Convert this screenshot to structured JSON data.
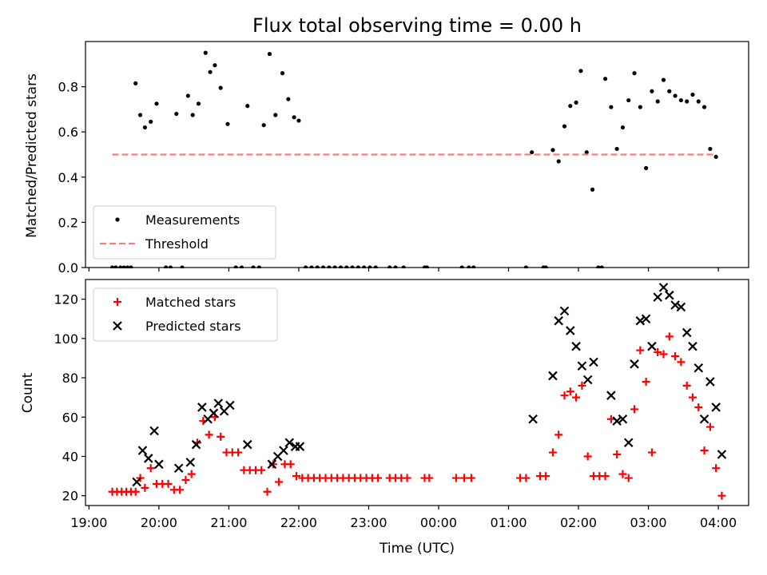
{
  "chart_data": [
    {
      "type": "scatter",
      "title": "Flux total observing time = 0.00 h",
      "xlabel": "",
      "ylabel": "Matched/Predicted stars",
      "ylim": [
        0,
        1.0
      ],
      "xlim": [
        "2023-01-01T18:57",
        "2023-01-02T04:26"
      ],
      "yticks": [
        "0.0",
        "0.2",
        "0.4",
        "0.6",
        "0.8"
      ],
      "yticks_values": [
        0,
        0.2,
        0.4,
        0.6,
        0.8
      ],
      "xtick_labels": [],
      "legend": {
        "placement": "lower-left"
      },
      "series": [
        {
          "name": "Measurements",
          "marker": "dot",
          "color": "#000000",
          "points": [
            [
              "19:20",
              0
            ],
            [
              "19:23",
              0
            ],
            [
              "19:27",
              0
            ],
            [
              "19:30",
              0
            ],
            [
              "19:33",
              0
            ],
            [
              "19:36",
              0
            ],
            [
              "19:40",
              0.815
            ],
            [
              "19:44",
              0.675
            ],
            [
              "19:48",
              0.62
            ],
            [
              "19:53",
              0.645
            ],
            [
              "19:58",
              0.725
            ],
            [
              "20:06",
              0
            ],
            [
              "20:10",
              0
            ],
            [
              "20:15",
              0.68
            ],
            [
              "20:20",
              0
            ],
            [
              "20:25",
              0.76
            ],
            [
              "20:29",
              0.675
            ],
            [
              "20:34",
              0.725
            ],
            [
              "20:40",
              0.95
            ],
            [
              "20:44",
              0.865
            ],
            [
              "20:48",
              0.895
            ],
            [
              "20:53",
              0.795
            ],
            [
              "20:59",
              0.635
            ],
            [
              "21:06",
              0
            ],
            [
              "21:11",
              0
            ],
            [
              "21:16",
              0.715
            ],
            [
              "21:21",
              0
            ],
            [
              "21:26",
              0
            ],
            [
              "21:30",
              0.63
            ],
            [
              "21:35",
              0.945
            ],
            [
              "21:40",
              0.675
            ],
            [
              "21:46",
              0.86
            ],
            [
              "21:51",
              0.745
            ],
            [
              "21:56",
              0.665
            ],
            [
              "22:00",
              0.65
            ],
            [
              "22:06",
              0
            ],
            [
              "22:11",
              0
            ],
            [
              "22:16",
              0
            ],
            [
              "22:21",
              0
            ],
            [
              "22:26",
              0
            ],
            [
              "22:31",
              0
            ],
            [
              "22:36",
              0
            ],
            [
              "22:41",
              0
            ],
            [
              "22:46",
              0
            ],
            [
              "22:51",
              0
            ],
            [
              "22:56",
              0
            ],
            [
              "23:01",
              0
            ],
            [
              "23:06",
              0
            ],
            [
              "23:18",
              0
            ],
            [
              "23:23",
              0
            ],
            [
              "23:30",
              0
            ],
            [
              "23:48",
              0
            ],
            [
              "23:50",
              0
            ],
            [
              "00:20",
              0
            ],
            [
              "00:26",
              0
            ],
            [
              "00:30",
              0
            ],
            [
              "01:15",
              0
            ],
            [
              "01:20",
              0.51
            ],
            [
              "01:30",
              0
            ],
            [
              "01:32",
              0
            ],
            [
              "01:38",
              0.52
            ],
            [
              "01:43",
              0.47
            ],
            [
              "01:48",
              0.625
            ],
            [
              "01:53",
              0.715
            ],
            [
              "01:58",
              0.73
            ],
            [
              "02:02",
              0.87
            ],
            [
              "02:07",
              0.51
            ],
            [
              "02:12",
              0.345
            ],
            [
              "02:17",
              0
            ],
            [
              "02:20",
              0
            ],
            [
              "02:23",
              0.835
            ],
            [
              "02:28",
              0.71
            ],
            [
              "02:33",
              0.525
            ],
            [
              "02:38",
              0.62
            ],
            [
              "02:43",
              0.74
            ],
            [
              "02:48",
              0.86
            ],
            [
              "02:53",
              0.71
            ],
            [
              "02:58",
              0.44
            ],
            [
              "03:03",
              0.78
            ],
            [
              "03:08",
              0.735
            ],
            [
              "03:13",
              0.83
            ],
            [
              "03:18",
              0.78
            ],
            [
              "03:23",
              0.76
            ],
            [
              "03:28",
              0.74
            ],
            [
              "03:33",
              0.735
            ],
            [
              "03:38",
              0.765
            ],
            [
              "03:43",
              0.735
            ],
            [
              "03:48",
              0.71
            ],
            [
              "03:53",
              0.525
            ],
            [
              "03:58",
              0.49
            ]
          ]
        },
        {
          "name": "Threshold",
          "marker": "dashed-line",
          "color": "#f08080",
          "points": [
            [
              "19:20",
              0.5
            ],
            [
              "03:58",
              0.5
            ]
          ]
        }
      ]
    },
    {
      "type": "scatter",
      "title": "",
      "xlabel": "Time (UTC)",
      "ylabel": "Count",
      "ylim": [
        15,
        130
      ],
      "xlim": [
        "2023-01-01T18:57",
        "2023-01-02T04:26"
      ],
      "yticks": [
        "20",
        "40",
        "60",
        "80",
        "100",
        "120"
      ],
      "yticks_values": [
        20,
        40,
        60,
        80,
        100,
        120
      ],
      "xtick_labels": [
        "19:00",
        "20:00",
        "21:00",
        "22:00",
        "23:00",
        "00:00",
        "01:00",
        "02:00",
        "03:00",
        "04:00"
      ],
      "legend": {
        "placement": "upper-left"
      },
      "series": [
        {
          "name": "Matched stars",
          "marker": "plus",
          "color": "#ff0000",
          "points": [
            [
              "19:20",
              22
            ],
            [
              "19:24",
              22
            ],
            [
              "19:28",
              22
            ],
            [
              "19:32",
              22
            ],
            [
              "19:36",
              22
            ],
            [
              "19:40",
              22
            ],
            [
              "19:44",
              29
            ],
            [
              "19:48",
              24
            ],
            [
              "19:53",
              34
            ],
            [
              "19:58",
              26
            ],
            [
              "20:03",
              26
            ],
            [
              "20:08",
              26
            ],
            [
              "20:13",
              23
            ],
            [
              "20:18",
              23
            ],
            [
              "20:23",
              28
            ],
            [
              "20:28",
              31
            ],
            [
              "20:33",
              47
            ],
            [
              "20:38",
              58
            ],
            [
              "20:43",
              51
            ],
            [
              "20:48",
              60
            ],
            [
              "20:53",
              50
            ],
            [
              "20:58",
              42
            ],
            [
              "21:03",
              42
            ],
            [
              "21:08",
              42
            ],
            [
              "21:13",
              33
            ],
            [
              "21:18",
              33
            ],
            [
              "21:23",
              33
            ],
            [
              "21:28",
              33
            ],
            [
              "21:33",
              22
            ],
            [
              "21:38",
              36
            ],
            [
              "21:43",
              27
            ],
            [
              "21:48",
              36
            ],
            [
              "21:53",
              36
            ],
            [
              "21:58",
              30
            ],
            [
              "22:03",
              29
            ],
            [
              "22:08",
              29
            ],
            [
              "22:13",
              29
            ],
            [
              "22:18",
              29
            ],
            [
              "22:23",
              29
            ],
            [
              "22:28",
              29
            ],
            [
              "22:33",
              29
            ],
            [
              "22:38",
              29
            ],
            [
              "22:43",
              29
            ],
            [
              "22:48",
              29
            ],
            [
              "22:53",
              29
            ],
            [
              "22:58",
              29
            ],
            [
              "23:03",
              29
            ],
            [
              "23:08",
              29
            ],
            [
              "23:18",
              29
            ],
            [
              "23:23",
              29
            ],
            [
              "23:28",
              29
            ],
            [
              "23:33",
              29
            ],
            [
              "23:48",
              29
            ],
            [
              "23:52",
              29
            ],
            [
              "00:15",
              29
            ],
            [
              "00:22",
              29
            ],
            [
              "00:28",
              29
            ],
            [
              "01:10",
              29
            ],
            [
              "01:15",
              29
            ],
            [
              "01:27",
              30
            ],
            [
              "01:32",
              30
            ],
            [
              "01:38",
              42
            ],
            [
              "01:43",
              51
            ],
            [
              "01:48",
              71
            ],
            [
              "01:53",
              73
            ],
            [
              "01:58",
              70
            ],
            [
              "02:03",
              76
            ],
            [
              "02:08",
              40
            ],
            [
              "02:13",
              30
            ],
            [
              "02:18",
              30
            ],
            [
              "02:23",
              30
            ],
            [
              "02:28",
              59
            ],
            [
              "02:33",
              41
            ],
            [
              "02:38",
              31
            ],
            [
              "02:43",
              29
            ],
            [
              "02:48",
              64
            ],
            [
              "02:53",
              94
            ],
            [
              "02:58",
              78
            ],
            [
              "03:03",
              42
            ],
            [
              "03:08",
              93
            ],
            [
              "03:13",
              92
            ],
            [
              "03:18",
              101
            ],
            [
              "03:23",
              91
            ],
            [
              "03:28",
              88
            ],
            [
              "03:33",
              76
            ],
            [
              "03:38",
              70
            ],
            [
              "03:43",
              65
            ],
            [
              "03:48",
              43
            ],
            [
              "03:53",
              55
            ],
            [
              "03:58",
              34
            ],
            [
              "04:03",
              20
            ]
          ]
        },
        {
          "name": "Predicted stars",
          "marker": "x",
          "color": "#000000",
          "points": [
            [
              "19:41",
              27
            ],
            [
              "19:46",
              43
            ],
            [
              "19:51",
              39
            ],
            [
              "19:56",
              53
            ],
            [
              "20:00",
              36
            ],
            [
              "20:17",
              34
            ],
            [
              "20:27",
              37
            ],
            [
              "20:32",
              46
            ],
            [
              "20:37",
              65
            ],
            [
              "20:42",
              59
            ],
            [
              "20:47",
              62
            ],
            [
              "20:51",
              67
            ],
            [
              "20:56",
              63
            ],
            [
              "21:01",
              66
            ],
            [
              "21:16",
              46
            ],
            [
              "21:37",
              36
            ],
            [
              "21:42",
              40
            ],
            [
              "21:47",
              43
            ],
            [
              "21:52",
              47
            ],
            [
              "21:57",
              45
            ],
            [
              "22:01",
              45
            ],
            [
              "01:21",
              59
            ],
            [
              "01:38",
              81
            ],
            [
              "01:43",
              109
            ],
            [
              "01:48",
              114
            ],
            [
              "01:53",
              104
            ],
            [
              "01:58",
              96
            ],
            [
              "02:03",
              86
            ],
            [
              "02:08",
              79
            ],
            [
              "02:13",
              88
            ],
            [
              "02:28",
              71
            ],
            [
              "02:33",
              58
            ],
            [
              "02:38",
              59
            ],
            [
              "02:43",
              47
            ],
            [
              "02:48",
              87
            ],
            [
              "02:53",
              109
            ],
            [
              "02:58",
              110
            ],
            [
              "03:03",
              96
            ],
            [
              "03:08",
              121
            ],
            [
              "03:13",
              126
            ],
            [
              "03:18",
              122
            ],
            [
              "03:23",
              117
            ],
            [
              "03:28",
              116
            ],
            [
              "03:33",
              103
            ],
            [
              "03:38",
              96
            ],
            [
              "03:43",
              85
            ],
            [
              "03:48",
              59
            ],
            [
              "03:53",
              78
            ],
            [
              "03:58",
              65
            ],
            [
              "04:03",
              41
            ]
          ]
        }
      ]
    }
  ]
}
